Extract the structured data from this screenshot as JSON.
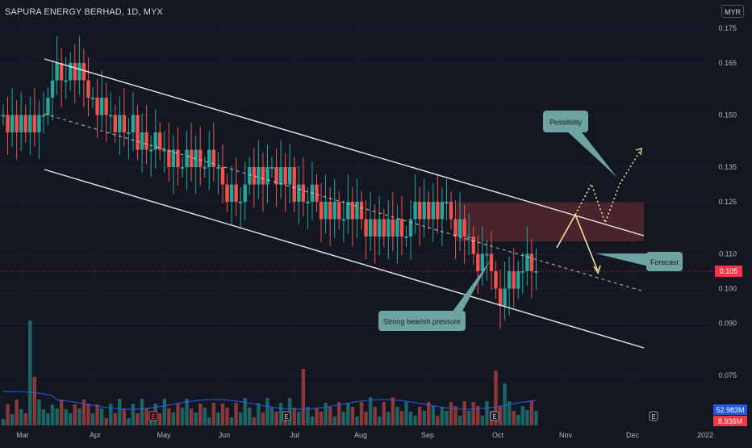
{
  "header": {
    "title": "SAPURA ENERGY BERHAD, 1D, MYX",
    "currency": "MYR"
  },
  "colors": {
    "background": "#131722",
    "up": "#26a69a",
    "down": "#ef5350",
    "channel": "#e8e8e8",
    "callout": "#6fa3a1",
    "forecast_path": "#f5e49c",
    "zone_fill": "#5b2a30",
    "volume_ma": "#2962ff",
    "last_price": "#f23645"
  },
  "chart_data": {
    "type": "candlestick",
    "symbol": "SAPURA ENERGY BERHAD",
    "interval": "1D",
    "exchange": "MYX",
    "price_axis": {
      "ticks": [
        "0.175",
        "0.165",
        "0.150",
        "0.135",
        "0.125",
        "0.110",
        "0.100",
        "0.090",
        "0.075"
      ],
      "tick_values": [
        0.175,
        0.165,
        0.15,
        0.135,
        0.125,
        0.11,
        0.1,
        0.09,
        0.075
      ],
      "ylim": [
        0.065,
        0.18
      ]
    },
    "time_axis": {
      "labels": [
        "Mar",
        "Apr",
        "May",
        "Jun",
        "Jul",
        "Aug",
        "Sep",
        "Oct",
        "Nov",
        "Dec",
        "2022"
      ]
    },
    "last_price": {
      "label": "0.105",
      "value": 0.105
    },
    "volume": {
      "label": "52.983M",
      "ma_label": "8.936M"
    },
    "candles_close": [
      0.15,
      0.145,
      0.15,
      0.145,
      0.15,
      0.145,
      0.15,
      0.145,
      0.15,
      0.15,
      0.155,
      0.16,
      0.165,
      0.16,
      0.16,
      0.165,
      0.16,
      0.165,
      0.16,
      0.155,
      0.155,
      0.15,
      0.155,
      0.15,
      0.15,
      0.145,
      0.15,
      0.145,
      0.145,
      0.15,
      0.14,
      0.145,
      0.14,
      0.14,
      0.145,
      0.14,
      0.14,
      0.135,
      0.14,
      0.135,
      0.135,
      0.14,
      0.135,
      0.14,
      0.135,
      0.135,
      0.14,
      0.135,
      0.135,
      0.13,
      0.125,
      0.13,
      0.125,
      0.125,
      0.13,
      0.135,
      0.13,
      0.135,
      0.13,
      0.135,
      0.135,
      0.13,
      0.135,
      0.13,
      0.135,
      0.125,
      0.13,
      0.125,
      0.125,
      0.13,
      0.125,
      0.12,
      0.125,
      0.12,
      0.125,
      0.12,
      0.12,
      0.125,
      0.12,
      0.125,
      0.12,
      0.115,
      0.12,
      0.115,
      0.12,
      0.115,
      0.12,
      0.115,
      0.12,
      0.115,
      0.115,
      0.12,
      0.125,
      0.12,
      0.125,
      0.12,
      0.125,
      0.12,
      0.125,
      0.125,
      0.12,
      0.115,
      0.12,
      0.115,
      0.115,
      0.11,
      0.105,
      0.11,
      0.11,
      0.105,
      0.1,
      0.095,
      0.1,
      0.105,
      0.1,
      0.105,
      0.105,
      0.11,
      0.105,
      0.105
    ],
    "candles_type": "ohlc",
    "channel": {
      "upper": {
        "from": [
          "Mar",
          0.168
        ],
        "to": [
          "Dec",
          0.113
        ]
      },
      "middle": {
        "from": [
          "Mar",
          0.15
        ],
        "to": [
          "Dec",
          0.099
        ]
      },
      "lower": {
        "from": [
          "Mar",
          0.133
        ],
        "to": [
          "Dec",
          0.085
        ]
      }
    },
    "resistance_zone": {
      "top": 0.1248,
      "bottom": 0.1136
    },
    "annotations": [
      {
        "text": "Possibility"
      },
      {
        "text": "Forecast"
      },
      {
        "text": "Strong bearish pressure"
      }
    ],
    "event_markers": [
      "E",
      "E",
      "E",
      "E"
    ]
  }
}
